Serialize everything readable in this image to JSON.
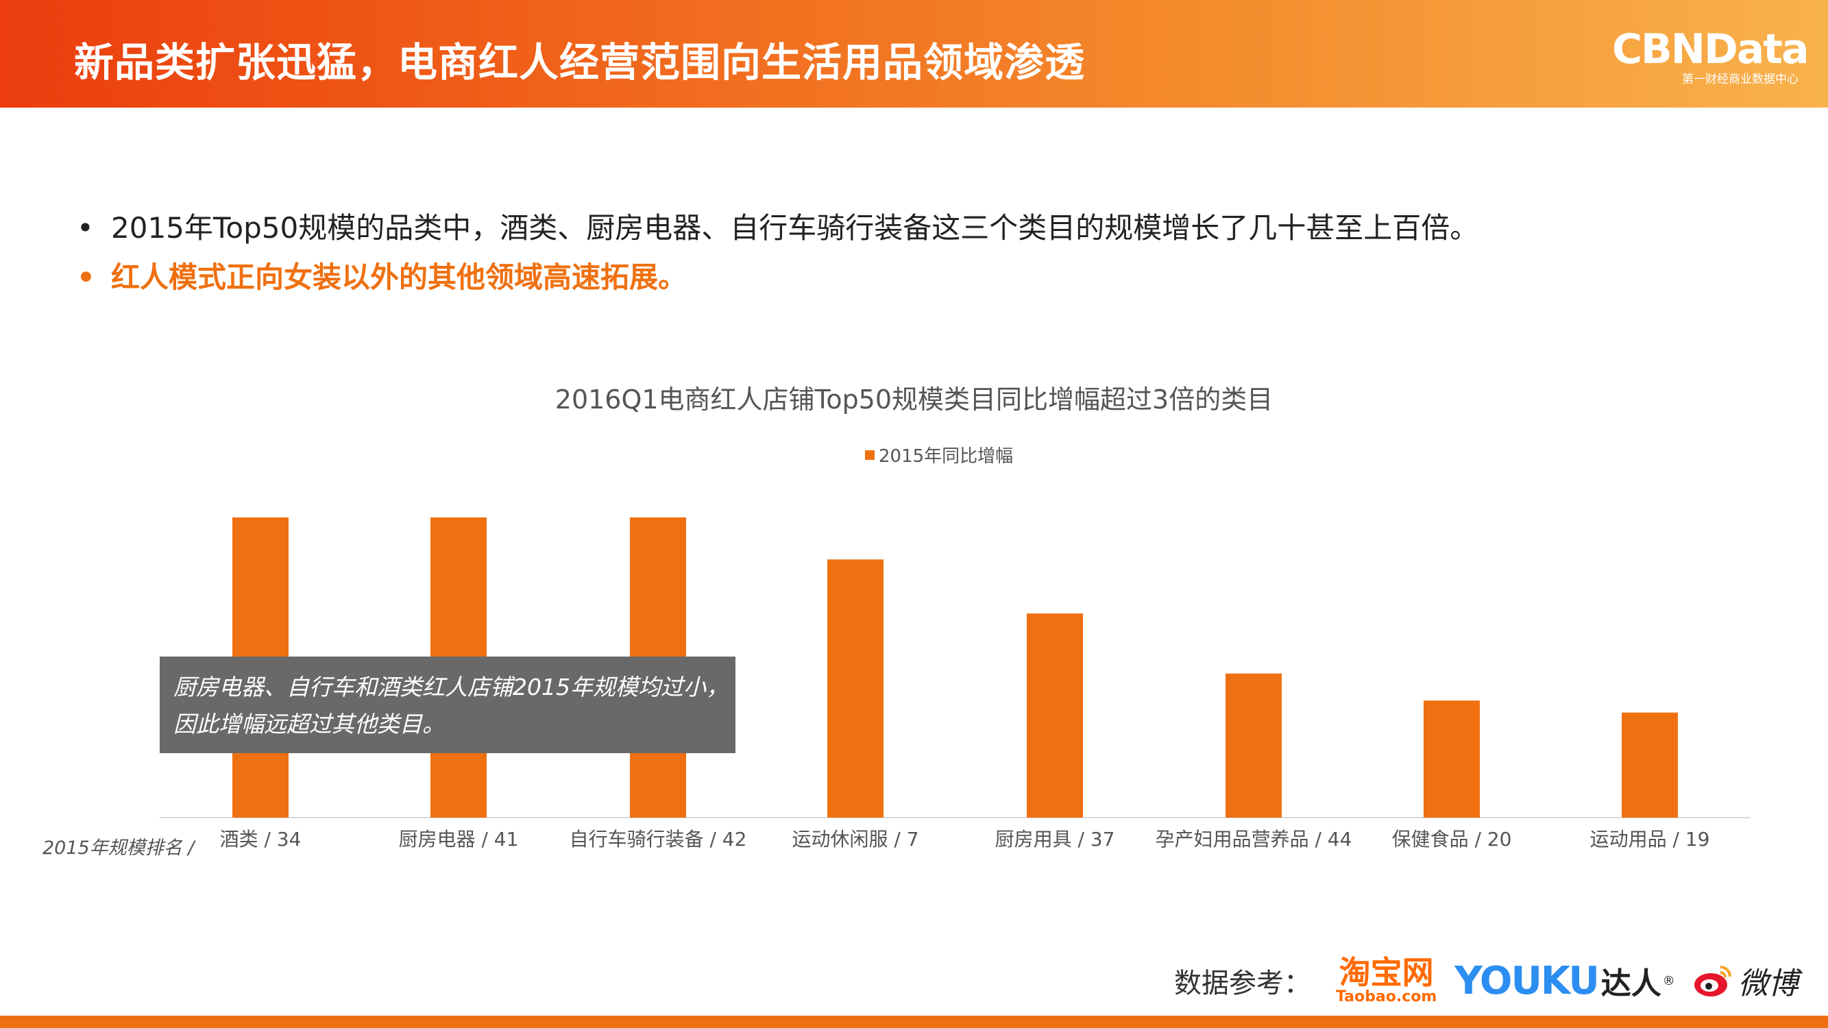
{
  "header": {
    "title": "新品类扩张迅猛，电商红人经营范围向生活用品领域渗透",
    "brand": "CBNData",
    "brand_sub": "第一财经商业数据中心"
  },
  "bullets": [
    "2015年Top50规模的品类中，酒类、厨房电器、自行车骑行装备这三个类目的规模增长了几十甚至上百倍。",
    "红人模式正向女装以外的其他领域高速拓展。"
  ],
  "rank_axis_label": "2015年规模排名 /",
  "annotation": [
    "厨房电器、自行车和酒类红人店铺2015年规模均过小，",
    "因此增幅远超过其他类目。"
  ],
  "sources": {
    "label": "数据参考：",
    "taobao_cn": "淘宝网",
    "taobao_en": "Taobao.com",
    "youku_en": "YOUKU",
    "youku_cn": "达人",
    "weibo_cn": "微博"
  },
  "colors": {
    "accent": "#ef7010",
    "annotation_bg": "#696969"
  },
  "chart_data": {
    "type": "bar",
    "title": "2016Q1电商红人店铺Top50规模类目同比增幅超过3倍的类目",
    "legend": "2015年同比增幅",
    "legend_position": "top",
    "categories": [
      "酒类 / 34",
      "厨房电器 / 41",
      "自行车骑行装备 / 42",
      "运动休闲服 / 7",
      "厨房用具 / 37",
      "孕产妇用品营养品 / 44",
      "保健食品 / 20",
      "运动用品 / 19"
    ],
    "series": [
      {
        "name": "2015年同比增幅",
        "relative_values": [
          1.0,
          1.0,
          1.0,
          0.86,
          0.68,
          0.48,
          0.39,
          0.35
        ]
      }
    ],
    "grid": false,
    "y_axis": "hidden"
  }
}
